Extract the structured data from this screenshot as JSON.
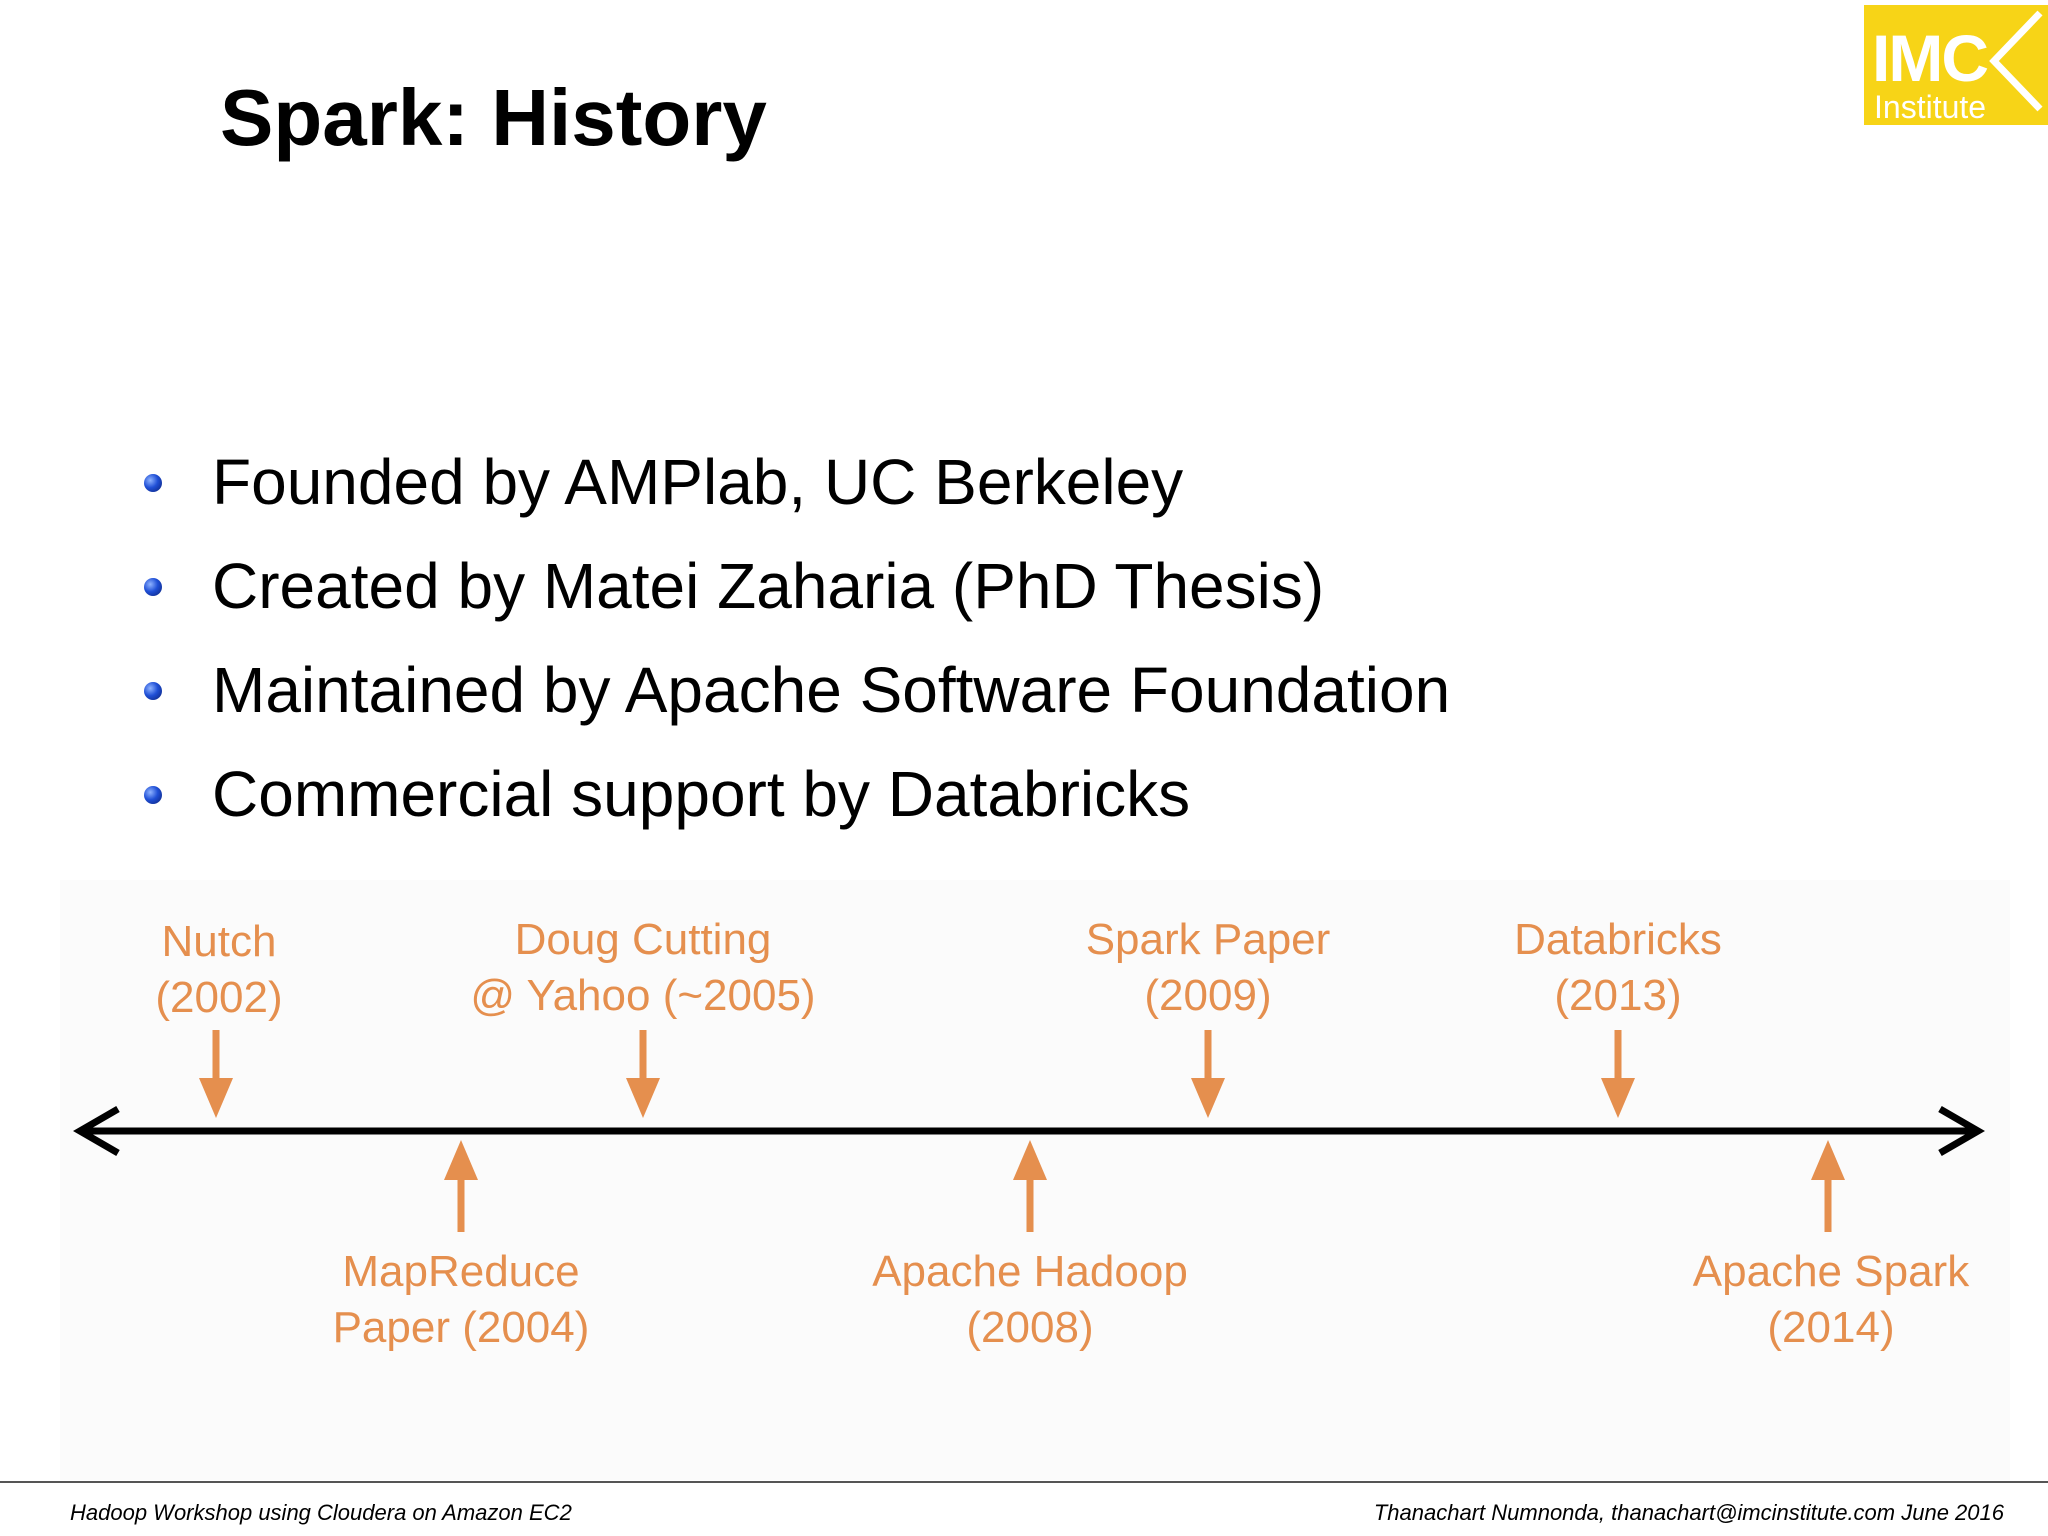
{
  "slide": {
    "title": "Spark: History"
  },
  "logo": {
    "main": "IMC",
    "sub": "Institute",
    "color": "#f7d417"
  },
  "bullets": [
    "Founded by AMPlab, UC Berkeley",
    "Created by Matei Zaharia (PhD Thesis)",
    "Maintained by Apache Software Foundation",
    "Commercial support by Databricks"
  ],
  "timeline": {
    "accent_color": "#e58f4e",
    "events": [
      {
        "line1": "Nutch",
        "line2": "(2002)",
        "position": "above"
      },
      {
        "line1": "MapReduce",
        "line2": "Paper (2004)",
        "position": "below"
      },
      {
        "line1": "Doug Cutting",
        "line2": "@ Yahoo (~2005)",
        "position": "above"
      },
      {
        "line1": "Apache Hadoop",
        "line2": "(2008)",
        "position": "below"
      },
      {
        "line1": "Spark Paper",
        "line2": "(2009)",
        "position": "above"
      },
      {
        "line1": "Databricks",
        "line2": "(2013)",
        "position": "above"
      },
      {
        "line1": "Apache Spark",
        "line2": "(2014)",
        "position": "below"
      }
    ]
  },
  "footer": {
    "left": "Hadoop Workshop using Cloudera on Amazon EC2",
    "right": "Thanachart Numnonda,  thanachart@imcinstitute.com  June 2016"
  }
}
